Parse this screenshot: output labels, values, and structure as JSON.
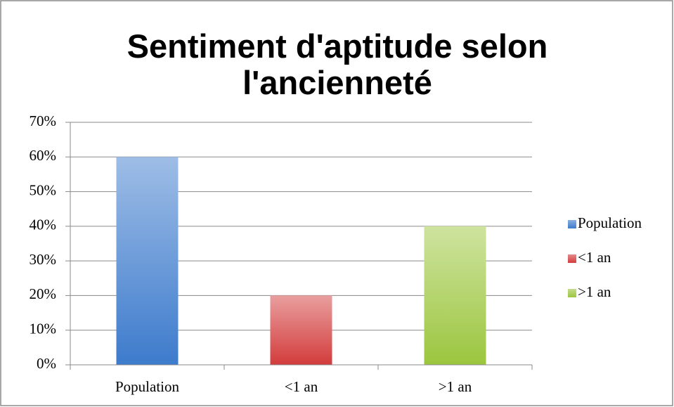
{
  "chart_data": {
    "type": "bar",
    "title": "Sentiment d'aptitude selon l'ancienneté",
    "categories": [
      "Population",
      "<1 an",
      ">1 an"
    ],
    "values": [
      60,
      20,
      40
    ],
    "colors": [
      "#3d7bcc",
      "#d33c3c",
      "#9cc63f"
    ],
    "ylim": [
      0,
      70
    ],
    "yticks": [
      {
        "value": 0,
        "label": "0%"
      },
      {
        "value": 10,
        "label": "10%"
      },
      {
        "value": 20,
        "label": "20%"
      },
      {
        "value": 30,
        "label": "30%"
      },
      {
        "value": 40,
        "label": "40%"
      },
      {
        "value": 50,
        "label": "50%"
      },
      {
        "value": 60,
        "label": "60%"
      },
      {
        "value": 70,
        "label": "70%"
      }
    ],
    "grid": true,
    "legend": "right"
  }
}
